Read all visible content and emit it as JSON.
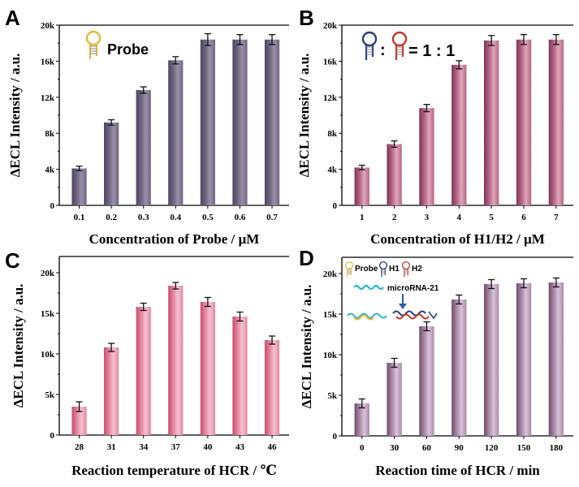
{
  "chart_data": [
    {
      "panel": "A",
      "type": "bar",
      "categories": [
        "0.1",
        "0.2",
        "0.3",
        "0.4",
        "0.5",
        "0.6",
        "0.7"
      ],
      "values": [
        4100,
        9200,
        12800,
        16100,
        18400,
        18400,
        18400
      ],
      "errors": [
        250,
        300,
        350,
        400,
        650,
        550,
        550
      ],
      "xlabel": "Concentration of  Probe / µM",
      "ylabel": "ΔECL Intensity / a.u.",
      "ylim": [
        0,
        20000
      ],
      "yticks": [
        0,
        4000,
        8000,
        12000,
        16000,
        20000
      ],
      "ytick_labels": [
        "0",
        "4k",
        "8k",
        "12k",
        "16k",
        "20k"
      ],
      "legend": "Probe",
      "colors": {
        "top": "#9b8fa8",
        "mid": "#6f6580",
        "bottom": "#4e4560"
      }
    },
    {
      "panel": "B",
      "type": "bar",
      "categories": [
        "1",
        "2",
        "3",
        "4",
        "5",
        "6",
        "7"
      ],
      "values": [
        4200,
        6800,
        10800,
        15600,
        18300,
        18400,
        18400
      ],
      "errors": [
        250,
        350,
        400,
        450,
        550,
        550,
        550
      ],
      "xlabel": "Concentration of H1/H2 / µM",
      "ylabel": "ΔECL Intensity / a.u.",
      "ylim": [
        0,
        20000
      ],
      "yticks": [
        0,
        4000,
        8000,
        12000,
        16000,
        20000
      ],
      "ytick_labels": [
        "0",
        "4k",
        "8k",
        "12k",
        "16k",
        "20k"
      ],
      "legend": ": = 1 : 1",
      "legend_parts": [
        ":",
        "= 1 : 1"
      ],
      "colors": {
        "top": "#e0a7b9",
        "mid": "#b46583",
        "bottom": "#7c3553"
      }
    },
    {
      "panel": "C",
      "type": "bar",
      "categories": [
        "28",
        "31",
        "34",
        "37",
        "40",
        "43",
        "46"
      ],
      "values": [
        3500,
        10800,
        15800,
        18400,
        16400,
        14600,
        11700
      ],
      "errors": [
        600,
        500,
        450,
        400,
        550,
        550,
        500
      ],
      "xlabel": "Reaction temperature of HCR / ℃",
      "ylabel": "ΔECL Intensity / a.u.",
      "ylim": [
        0,
        22000
      ],
      "yticks": [
        0,
        5000,
        10000,
        15000,
        20000
      ],
      "ytick_labels": [
        "0",
        "5k",
        "10k",
        "15k",
        "20k"
      ],
      "colors": {
        "top": "#f2c3d2",
        "mid": "#e6869f",
        "bottom": "#c54f70"
      }
    },
    {
      "panel": "D",
      "type": "bar",
      "categories": [
        "0",
        "30",
        "60",
        "90",
        "120",
        "150",
        "180"
      ],
      "values": [
        4000,
        9000,
        13500,
        16800,
        18700,
        18800,
        18900
      ],
      "errors": [
        550,
        550,
        550,
        550,
        550,
        550,
        550
      ],
      "xlabel": "Reaction time of HCR / min",
      "ylabel": "ΔECL Intensity / a.u.",
      "ylim": [
        0,
        22000
      ],
      "yticks": [
        0,
        5000,
        10000,
        15000,
        20000
      ],
      "ytick_labels": [
        "0",
        "5k",
        "10k",
        "15k",
        "20k"
      ],
      "legend_items": [
        "Probe",
        "H1",
        "H2"
      ],
      "target_label": "microRNA-21",
      "colors": {
        "top": "#d9c2da",
        "mid": "#a98aa6",
        "bottom": "#6f4c6a"
      }
    }
  ]
}
